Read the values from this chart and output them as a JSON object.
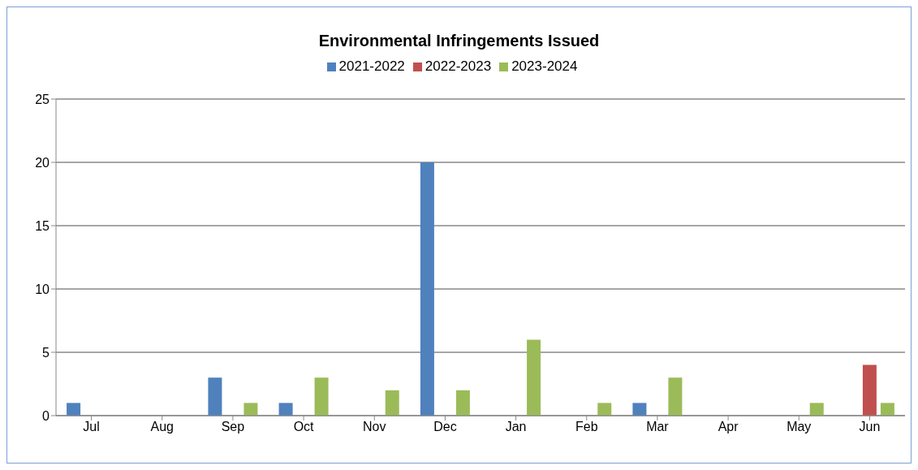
{
  "chart_data": {
    "type": "bar",
    "title": "Environmental Infringements Issued",
    "categories": [
      "Jul",
      "Aug",
      "Sep",
      "Oct",
      "Nov",
      "Dec",
      "Jan",
      "Feb",
      "Mar",
      "Apr",
      "May",
      "Jun"
    ],
    "series": [
      {
        "name": "2021-2022",
        "color": "#4f81bd",
        "values": [
          1,
          0,
          3,
          1,
          0,
          20,
          0,
          0,
          1,
          0,
          0,
          0
        ]
      },
      {
        "name": "2022-2023",
        "color": "#c0504d",
        "values": [
          0,
          0,
          0,
          0,
          0,
          0,
          0,
          0,
          0,
          0,
          0,
          4
        ]
      },
      {
        "name": "2023-2024",
        "color": "#9bbb59",
        "values": [
          0,
          0,
          1,
          3,
          2,
          2,
          6,
          1,
          3,
          0,
          1,
          1
        ]
      }
    ],
    "ylim": [
      0,
      25
    ],
    "yticks": [
      0,
      5,
      10,
      15,
      20,
      25
    ],
    "grid": "y",
    "legend": "top"
  }
}
